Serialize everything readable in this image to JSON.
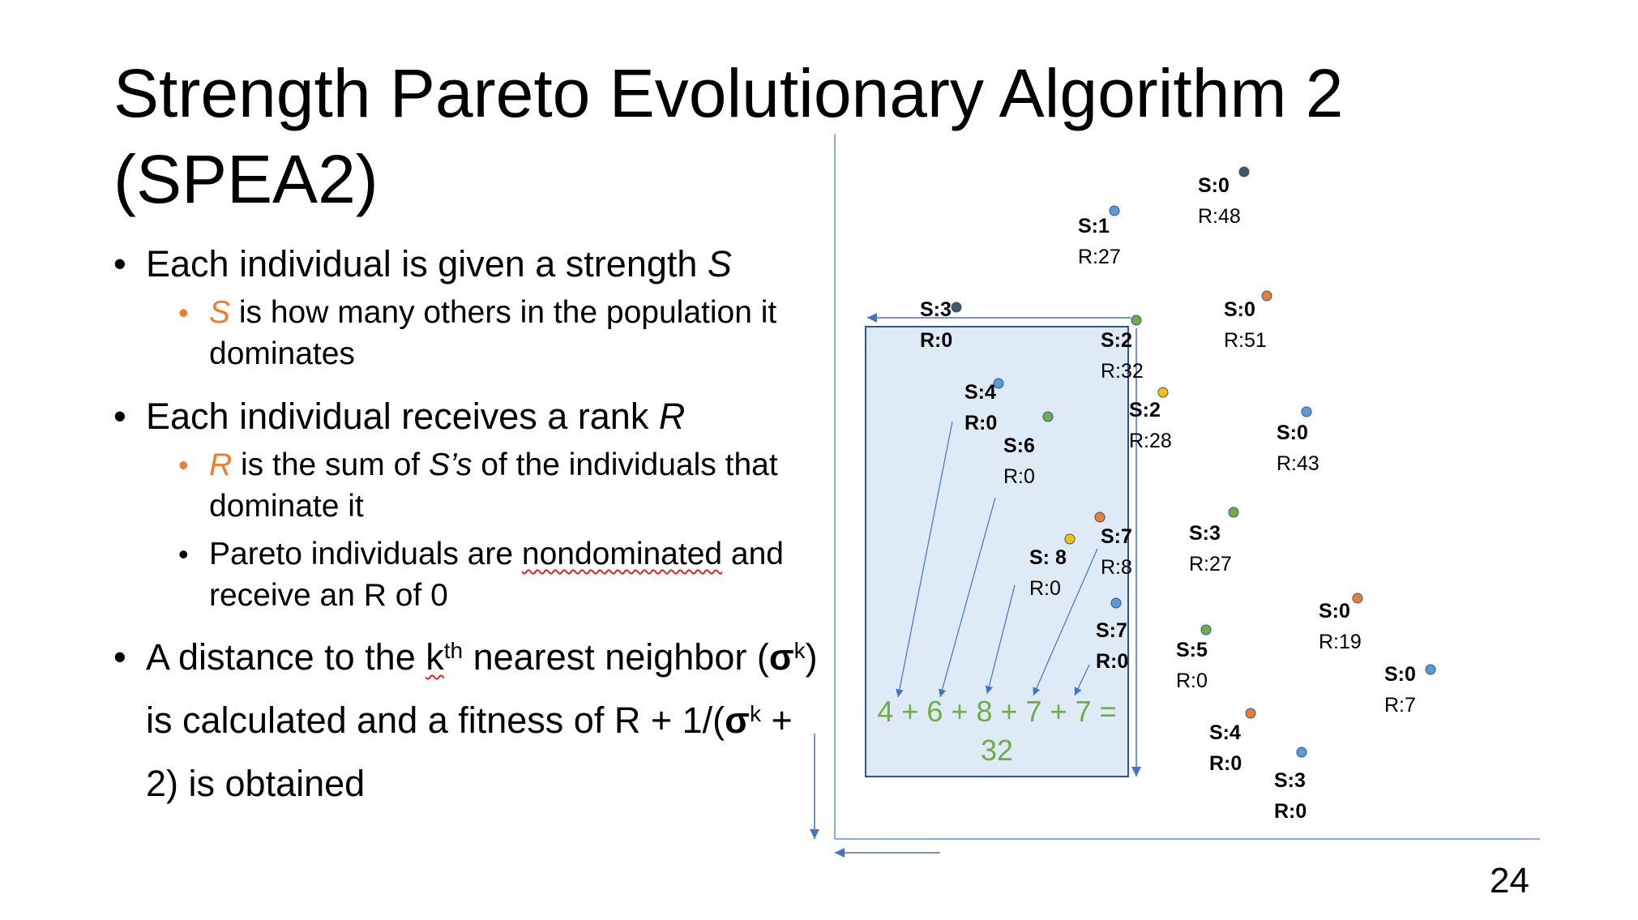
{
  "title": {
    "line1": "Strength Pareto Evolutionary Algorithm 2",
    "line2": "(SPEA2)"
  },
  "bullets": {
    "b1_text": "Each individual is given a strength ",
    "b1_var": "S",
    "b1_sub_var": "S",
    "b1_sub_text": " is how many others in the population it dominates",
    "b2_text": "Each individual receives a rank ",
    "b2_var": "R",
    "b2_sub1_var": "R",
    "b2_sub1_text_a": " is the sum of ",
    "b2_sub1_var2": "S’s",
    "b2_sub1_text_b": " of the individuals that dominate it",
    "b2_sub2_text_a": "Pareto individuals are ",
    "b2_sub2_word": "nondominated",
    "b2_sub2_text_b": " and receive an R of 0",
    "b3_text_a": "A distance to the ",
    "b3_k": "k",
    "b3_th": "th",
    "b3_text_b": " nearest neighbor (",
    "b3_sigma": "σ",
    "b3_k2": "k",
    "b3_text_c": ") is calculated and a fitness of R + 1/(",
    "b3_sigma2": "σ",
    "b3_k3": "k",
    "b3_text_d": " + 2) is obtained"
  },
  "page_number": "24",
  "colors": {
    "orange": "#ED7D31",
    "blue": "#5B9BD5",
    "green": "#70AD47",
    "yellow": "#FFC000",
    "navy": "#44546A",
    "box_fill": "#DEEBF7",
    "box_stroke": "#2F5597",
    "axis": "#8FAADC"
  },
  "diagram": {
    "sum_line1": "4 + 6 + 8 + 7 + 7 =",
    "sum_line2": "32",
    "points": [
      {
        "s": "S:0",
        "r": "R:48",
        "color": "navy",
        "bold_r": false
      },
      {
        "s": "S:1",
        "r": "R:27",
        "color": "blue",
        "bold_r": false
      },
      {
        "s": "S:3",
        "r": "R:0",
        "color": "navy",
        "bold_r": true
      },
      {
        "s": "S:2",
        "r": "R:32",
        "color": "green",
        "bold_r": false
      },
      {
        "s": "S:0",
        "r": "R:51",
        "color": "orange",
        "bold_r": false
      },
      {
        "s": "S:4",
        "r": "R:0",
        "color": "blue",
        "bold_r": true
      },
      {
        "s": "S:6",
        "r": "R:0",
        "color": "green",
        "bold_r": false
      },
      {
        "s": "S:2",
        "r": "R:28",
        "color": "yellow",
        "bold_r": false
      },
      {
        "s": "S:0",
        "r": "R:43",
        "color": "blue",
        "bold_r": false
      },
      {
        "s": "S:7",
        "r": "R:8",
        "color": "orange",
        "bold_r": false
      },
      {
        "s": "S: 8",
        "r": "R:0",
        "color": "yellow",
        "bold_r": false
      },
      {
        "s": "S:3",
        "r": "R:27",
        "color": "green",
        "bold_r": false
      },
      {
        "s": "S:7",
        "r": "R:0",
        "color": "blue",
        "bold_r": true
      },
      {
        "s": "S:5",
        "r": "R:0",
        "color": "green",
        "bold_r": false
      },
      {
        "s": "S:0",
        "r": "R:19",
        "color": "orange",
        "bold_r": false
      },
      {
        "s": "S:0",
        "r": "R:7",
        "color": "blue",
        "bold_r": false
      },
      {
        "s": "S:4",
        "r": "R:0",
        "color": "orange",
        "bold_r": true
      },
      {
        "s": "S:3",
        "r": "R:0",
        "color": "blue",
        "bold_r": true
      }
    ]
  }
}
